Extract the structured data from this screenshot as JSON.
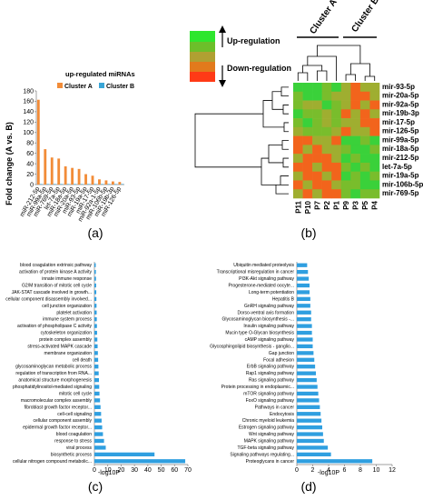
{
  "panel_labels": [
    "(a)",
    "(b)",
    "(c)",
    "(d)"
  ],
  "chart_data": [
    {
      "type": "bar",
      "title": "up-regulated miRNAs",
      "ylabel": "Fold change (A vs. B)",
      "ylim": [
        0,
        180
      ],
      "yticks": [
        0,
        20,
        40,
        60,
        80,
        100,
        120,
        140,
        160,
        180
      ],
      "legend": {
        "position": "top-right",
        "entries": [
          "Cluster A",
          "Cluster B"
        ]
      },
      "categories": [
        "miR-212-5p",
        "miR-99a-5p",
        "miR-769-5p",
        "let-7a-5p",
        "miR-18a-5p",
        "miR-20a-5p",
        "miR-93-5p",
        "miR-19a-5p",
        "miR-17-5p",
        "miR-92a-1-5p",
        "miR-106b-5p",
        "miR-19b-3p",
        "miR-126-5p"
      ],
      "series": [
        {
          "name": "Cluster A",
          "values": [
            163,
            68,
            52,
            50,
            35,
            32,
            30,
            20,
            17,
            10,
            8,
            6,
            5
          ]
        },
        {
          "name": "Cluster B",
          "values": [
            1,
            1,
            1,
            1,
            1,
            1,
            1,
            1,
            1,
            1,
            1,
            1,
            1
          ]
        }
      ],
      "colors": {
        "Cluster A": "#f28c38",
        "Cluster B": "#39a5d6"
      }
    },
    {
      "type": "heatmap",
      "legend": {
        "up": "Up-regulation",
        "down": "Down-regulation"
      },
      "column_groups": [
        "Cluster A",
        "Cluster B"
      ],
      "columns": [
        "P11",
        "P10",
        "P7",
        "P2",
        "P1",
        "P9",
        "P3",
        "P5",
        "P4"
      ],
      "rows": [
        "mir-93-5p",
        "mir-20a-5p",
        "mir-92a-5p",
        "mir-19b-3p",
        "mir-17-5p",
        "mir-126-5p",
        "mir-99a-5p",
        "mir-18a-5p",
        "mir-212-5p",
        "let-7a-5p",
        "mir-19a-5p",
        "mir-106b-5p",
        "mir-769-5p"
      ],
      "values": [
        [
          2,
          2,
          2,
          1,
          2,
          0,
          -1,
          0,
          0
        ],
        [
          1,
          2,
          2,
          1,
          0,
          0,
          -1,
          -1,
          0
        ],
        [
          1,
          0,
          0,
          2,
          1,
          0,
          -1,
          0,
          -1
        ],
        [
          2,
          1,
          1,
          0,
          1,
          -1,
          0,
          -1,
          0
        ],
        [
          1,
          2,
          1,
          0,
          1,
          0,
          0,
          -1,
          -1
        ],
        [
          0,
          1,
          1,
          1,
          0,
          -1,
          0,
          0,
          -1
        ],
        [
          -1,
          -1,
          0,
          0,
          -1,
          2,
          2,
          1,
          2
        ],
        [
          -1,
          0,
          -1,
          0,
          0,
          1,
          2,
          2,
          1
        ],
        [
          0,
          -1,
          -1,
          -1,
          0,
          2,
          1,
          2,
          2
        ],
        [
          -1,
          -1,
          0,
          -1,
          -1,
          1,
          2,
          1,
          2
        ],
        [
          0,
          -1,
          -1,
          0,
          -1,
          2,
          1,
          2,
          1
        ],
        [
          -1,
          0,
          -1,
          -1,
          0,
          1,
          1,
          2,
          2
        ],
        [
          0,
          -1,
          0,
          -1,
          -1,
          1,
          2,
          1,
          1
        ]
      ],
      "colors": {
        "up": "#2ecc2e",
        "mid": "#8aa832",
        "down": "#ff3d14"
      }
    },
    {
      "type": "bar",
      "orientation": "horizontal",
      "xlabel": "-log10P",
      "xlim": [
        0,
        70
      ],
      "xticks": [
        0,
        10,
        20,
        30,
        40,
        50,
        60,
        70
      ],
      "categories": [
        "blood coagulation extrinsic pathway",
        "activation of protein kinase A activity",
        "innate immune response",
        "G2/M transition of mitotic cell cycle",
        "JAK-STAT cascade involved in growth...",
        "cellular component disassembly involved...",
        "cell junction organization",
        "platelet activation",
        "immune system process",
        "activation of phospholipase C activity",
        "cytoskeleton organization",
        "protein complex assembly",
        "stress-activated MAPK cascade",
        "membrane organization",
        "cell death",
        "glycosaminoglycan metabolic process",
        "regulation of transcription from RNA...",
        "anatomical structure morphogenesis",
        "phosphatidylinositol-mediated signaling",
        "mitotic cell cycle",
        "macromolecular complex assembly",
        "fibroblast growth factor receptor...",
        "cell-cell signaling",
        "cellular component assembly",
        "epidermal growth factor receptor...",
        "blood coagulation",
        "response to stress",
        "viral process",
        "biosynthetic process",
        "cellular nitrogen compound metabolic..."
      ],
      "values": [
        1.0,
        1.1,
        1.2,
        1.3,
        1.4,
        1.5,
        1.6,
        1.7,
        1.8,
        1.9,
        2.0,
        2.2,
        2.4,
        2.6,
        2.8,
        3.0,
        3.2,
        3.4,
        3.6,
        3.8,
        4.2,
        4.6,
        5.0,
        5.4,
        5.8,
        6.4,
        7.2,
        8.5,
        45.0,
        68.0
      ],
      "colors": {
        "bar": "#2f9fe0"
      }
    },
    {
      "type": "bar",
      "orientation": "horizontal",
      "xlabel": "-log10P",
      "xlim": [
        0,
        12
      ],
      "xticks": [
        0,
        2,
        4,
        6,
        8,
        10,
        12
      ],
      "categories": [
        "Ubiquitin mediated proteolysis",
        "Transcriptional misregulation in cancer",
        "PI3K-Akt signaling pathway",
        "Progesterone-mediated oocyte...",
        "Long-term potentiation",
        "Hepatitis B",
        "GnRH signaling pathway",
        "Dorso-ventral axis formation",
        "Glycosaminoglycan biosynthesis -...",
        "Insulin signaling pathway",
        "Mucin type O-Glycan biosynthesis",
        "cAMP signaling pathway",
        "Glycosphingolipid biosynthesis - ganglio...",
        "Gap junction",
        "Focal adhesion",
        "ErbB signaling pathway",
        "Rap1 signaling pathway",
        "Ras signaling pathway",
        "Protein processing in endoplasmic...",
        "mTOR signaling pathway",
        "FoxO signaling pathway",
        "Pathways in cancer",
        "Endocytosis",
        "Chronic myeloid leukemia",
        "Estrogen signaling pathway",
        "Wnt signaling pathway",
        "MAPK signaling pathway",
        "TGF-beta signaling pathway",
        "Signaling pathways regulating...",
        "Proteoglycans in cancer"
      ],
      "values": [
        1.3,
        1.4,
        1.5,
        1.6,
        1.6,
        1.7,
        1.7,
        1.8,
        1.8,
        1.9,
        1.9,
        2.0,
        2.0,
        2.1,
        2.2,
        2.3,
        2.4,
        2.5,
        2.6,
        2.7,
        2.8,
        2.9,
        3.0,
        3.1,
        3.2,
        3.3,
        3.4,
        3.9,
        4.3,
        9.5
      ],
      "colors": {
        "bar": "#2f9fe0"
      }
    }
  ]
}
